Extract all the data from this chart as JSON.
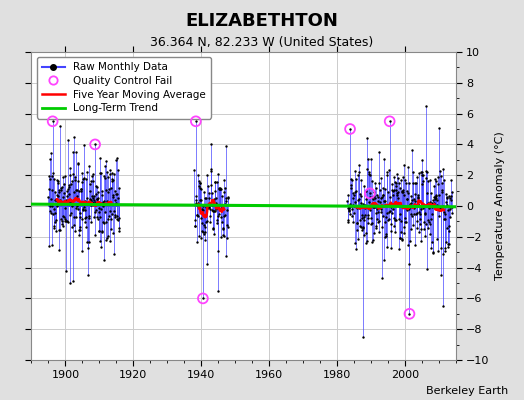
{
  "title": "ELIZABETHTON",
  "subtitle": "36.364 N, 82.233 W (United States)",
  "ylabel": "Temperature Anomaly (°C)",
  "credit": "Berkeley Earth",
  "ylim": [
    -10,
    10
  ],
  "xlim": [
    1890,
    2015
  ],
  "grid_color": "#cccccc",
  "background_color": "#e0e0e0",
  "plot_bg_color": "#ffffff",
  "raw_color": "#4444ff",
  "ma_color": "#ff0000",
  "trend_color": "#00cc00",
  "qc_color": "#ff44ff",
  "legend_items": [
    "Raw Monthly Data",
    "Quality Control Fail",
    "Five Year Moving Average",
    "Long-Term Trend"
  ],
  "seg1_start": 1895,
  "seg1_end": 1915,
  "seg2_start": 1938,
  "seg2_end": 1947,
  "seg3_start": 1983,
  "seg3_end": 2013,
  "trend_x": [
    1890,
    2015
  ],
  "trend_y": [
    0.12,
    -0.05
  ],
  "xticks": [
    1900,
    1920,
    1940,
    1960,
    1980,
    2000
  ],
  "yticks": [
    -10,
    -8,
    -6,
    -4,
    -2,
    0,
    2,
    4,
    6,
    8,
    10
  ]
}
